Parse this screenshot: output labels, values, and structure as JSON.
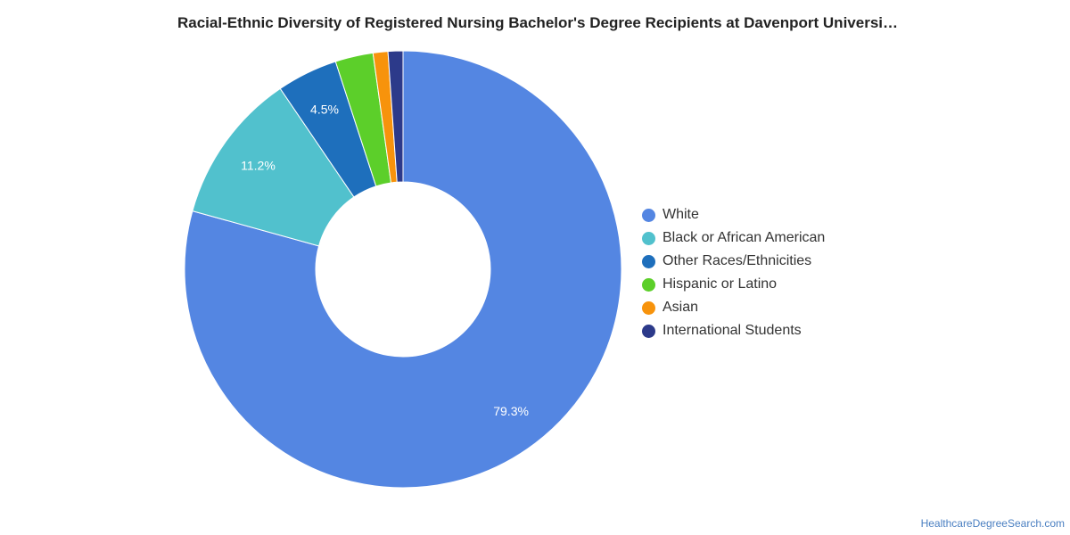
{
  "chart_data": {
    "type": "pie",
    "donut": true,
    "title": "Racial-Ethnic Diversity of Registered Nursing Bachelor's Degree Recipients at Davenport Universi…",
    "legend_position": "right",
    "categories": [
      "White",
      "Black or African American",
      "Other Races/Ethnicities",
      "Hispanic or Latino",
      "Asian",
      "International Students"
    ],
    "values": [
      79.3,
      11.2,
      4.5,
      2.8,
      1.1,
      1.1
    ],
    "data_labels": [
      "79.3%",
      "11.2%",
      "4.5%",
      "",
      "",
      ""
    ],
    "colors": [
      "#5486e2",
      "#51c1cd",
      "#1e6fbc",
      "#5ccf2a",
      "#f7930c",
      "#2c3a8a"
    ]
  },
  "source": "HealthcareDegreeSearch.com"
}
